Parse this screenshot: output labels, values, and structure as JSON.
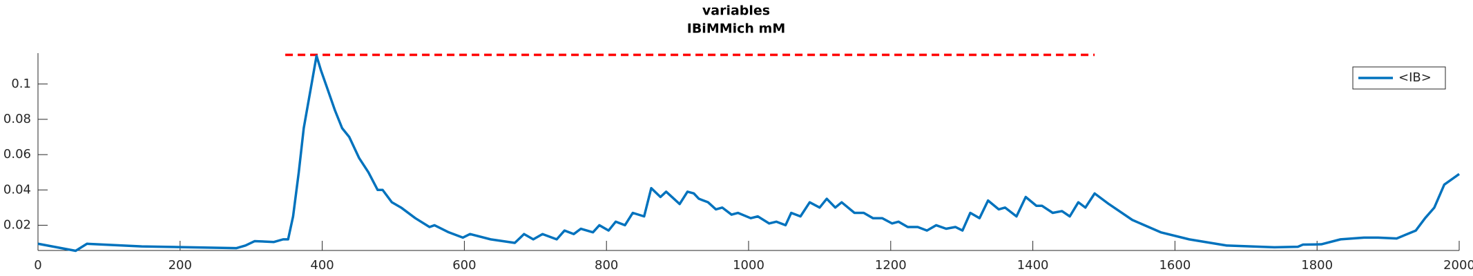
{
  "chart_data": {
    "type": "line",
    "title": "variables",
    "subtitle": "IBiMMich mM",
    "x": [
      0,
      53,
      69,
      146,
      279,
      292,
      305,
      332,
      345,
      352,
      359,
      367,
      374,
      385,
      392,
      398,
      405,
      418,
      428,
      438,
      452,
      465,
      478,
      485,
      498,
      511,
      531,
      551,
      558,
      578,
      598,
      608,
      637,
      671,
      684,
      697,
      710,
      730,
      741,
      754,
      764,
      781,
      790,
      803,
      813,
      826,
      837,
      853,
      863,
      876,
      884,
      903,
      914,
      923,
      930,
      943,
      954,
      963,
      976,
      985,
      1003,
      1013,
      1029,
      1039,
      1052,
      1060,
      1073,
      1086,
      1100,
      1110,
      1122,
      1131,
      1149,
      1162,
      1175,
      1188,
      1202,
      1211,
      1224,
      1238,
      1251,
      1264,
      1278,
      1291,
      1301,
      1312,
      1325,
      1337,
      1352,
      1361,
      1377,
      1390,
      1405,
      1413,
      1428,
      1441,
      1452,
      1464,
      1474,
      1487,
      1507,
      1540,
      1580,
      1620,
      1673,
      1740,
      1773,
      1780,
      1806,
      1833,
      1866,
      1886,
      1912,
      1939,
      1952,
      1965,
      1979,
      2000
    ],
    "series": [
      {
        "name": "<IB>",
        "color": "#0072bd",
        "values": [
          0.0095,
          0.0055,
          0.0095,
          0.008,
          0.007,
          0.0085,
          0.011,
          0.0105,
          0.012,
          0.012,
          0.025,
          0.05,
          0.075,
          0.1,
          0.116,
          0.108,
          0.1,
          0.085,
          0.075,
          0.07,
          0.058,
          0.05,
          0.04,
          0.04,
          0.033,
          0.03,
          0.024,
          0.019,
          0.02,
          0.016,
          0.013,
          0.015,
          0.012,
          0.01,
          0.015,
          0.012,
          0.015,
          0.012,
          0.017,
          0.015,
          0.018,
          0.016,
          0.02,
          0.017,
          0.022,
          0.02,
          0.027,
          0.025,
          0.041,
          0.036,
          0.039,
          0.032,
          0.039,
          0.038,
          0.035,
          0.033,
          0.029,
          0.03,
          0.026,
          0.027,
          0.024,
          0.025,
          0.021,
          0.022,
          0.02,
          0.027,
          0.025,
          0.033,
          0.03,
          0.035,
          0.03,
          0.033,
          0.027,
          0.027,
          0.024,
          0.024,
          0.021,
          0.022,
          0.019,
          0.019,
          0.017,
          0.02,
          0.018,
          0.019,
          0.017,
          0.027,
          0.024,
          0.034,
          0.029,
          0.03,
          0.025,
          0.036,
          0.031,
          0.031,
          0.027,
          0.028,
          0.025,
          0.033,
          0.03,
          0.038,
          0.032,
          0.023,
          0.016,
          0.012,
          0.0085,
          0.0075,
          0.0078,
          0.009,
          0.0092,
          0.012,
          0.013,
          0.013,
          0.0125,
          0.017,
          0.024,
          0.03,
          0.043,
          0.049
        ]
      }
    ],
    "reference_line": {
      "x": [
        348,
        1487
      ],
      "y": 0.1165,
      "color": "#ff0000"
    },
    "xlim": [
      0,
      2000
    ],
    "xticks": [
      0,
      200,
      400,
      600,
      800,
      1000,
      1200,
      1400,
      1600,
      1800,
      2000
    ],
    "ylim": [
      0.0057,
      0.1175
    ],
    "yticks": [
      0.02,
      0.04,
      0.06,
      0.08,
      0.1
    ],
    "legend": "upper right",
    "grid": false
  }
}
